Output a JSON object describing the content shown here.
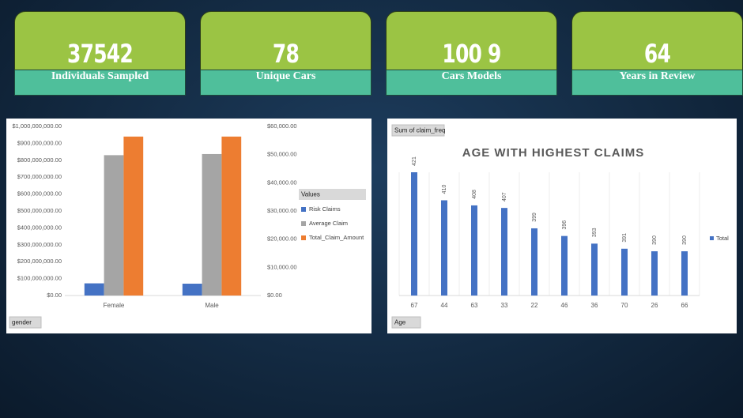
{
  "kpis": [
    {
      "value": 37542,
      "label": "Individuals Sampled"
    },
    {
      "value": 78,
      "label": "Unique Cars"
    },
    {
      "value": "100 9",
      "label": "Cars Models"
    },
    {
      "value": 64,
      "label": "Years in Review"
    }
  ],
  "chart_data": [
    {
      "type": "bar",
      "categories": [
        "Female",
        "Male"
      ],
      "series": [
        {
          "name": "Risk Claims",
          "color": "#4472c4",
          "values": [
            72000000,
            70000000
          ]
        },
        {
          "name": "Average Claim",
          "color": "#a5a5a5",
          "values": [
            49800,
            50200
          ],
          "axis": "y2"
        },
        {
          "name": "Total_Claim_Amount",
          "color": "#ed7d31",
          "values": [
            940000000,
            940000000
          ]
        }
      ],
      "ylim": [
        0,
        1000000000
      ],
      "yticks": [
        {
          "value": 0,
          "label": "$0.00"
        },
        {
          "value": 100000000,
          "label": "$100,000,000.00"
        },
        {
          "value": 200000000,
          "label": "$200,000,000.00"
        },
        {
          "value": 300000000,
          "label": "$300,000,000.00"
        },
        {
          "value": 400000000,
          "label": "$400,000,000.00"
        },
        {
          "value": 500000000,
          "label": "$500,000,000.00"
        },
        {
          "value": 600000000,
          "label": "$600,000,000.00"
        },
        {
          "value": 700000000,
          "label": "$700,000,000.00"
        },
        {
          "value": 800000000,
          "label": "$800,000,000.00"
        },
        {
          "value": 900000000,
          "label": "$900,000,000.00"
        },
        {
          "value": 1000000000,
          "label": "$1,000,000,000.00"
        }
      ],
      "y2lim": [
        0,
        60000
      ],
      "y2ticks": [
        {
          "value": 0,
          "label": "$0.00"
        },
        {
          "value": 10000,
          "label": "$10,000.00"
        },
        {
          "value": 20000,
          "label": "$20,000.00"
        },
        {
          "value": 30000,
          "label": "$30,000.00"
        },
        {
          "value": 40000,
          "label": "$40,000.00"
        },
        {
          "value": 50000,
          "label": "$50,000.00"
        },
        {
          "value": 60000,
          "label": "$60,000.00"
        }
      ],
      "legend_title": "Values",
      "legend": "right",
      "filter_label": "gender"
    },
    {
      "type": "bar",
      "title": "AGE WITH HIGHEST CLAIMS",
      "field_label": "Sum of claim_freq",
      "categories": [
        "67",
        "44",
        "63",
        "33",
        "22",
        "46",
        "36",
        "70",
        "26",
        "66"
      ],
      "series": [
        {
          "name": "Total",
          "color": "#4472c4",
          "values": [
            421,
            410,
            408,
            407,
            399,
            396,
            393,
            391,
            390,
            390
          ]
        }
      ],
      "legend": "right",
      "filter_label": "Age"
    }
  ]
}
